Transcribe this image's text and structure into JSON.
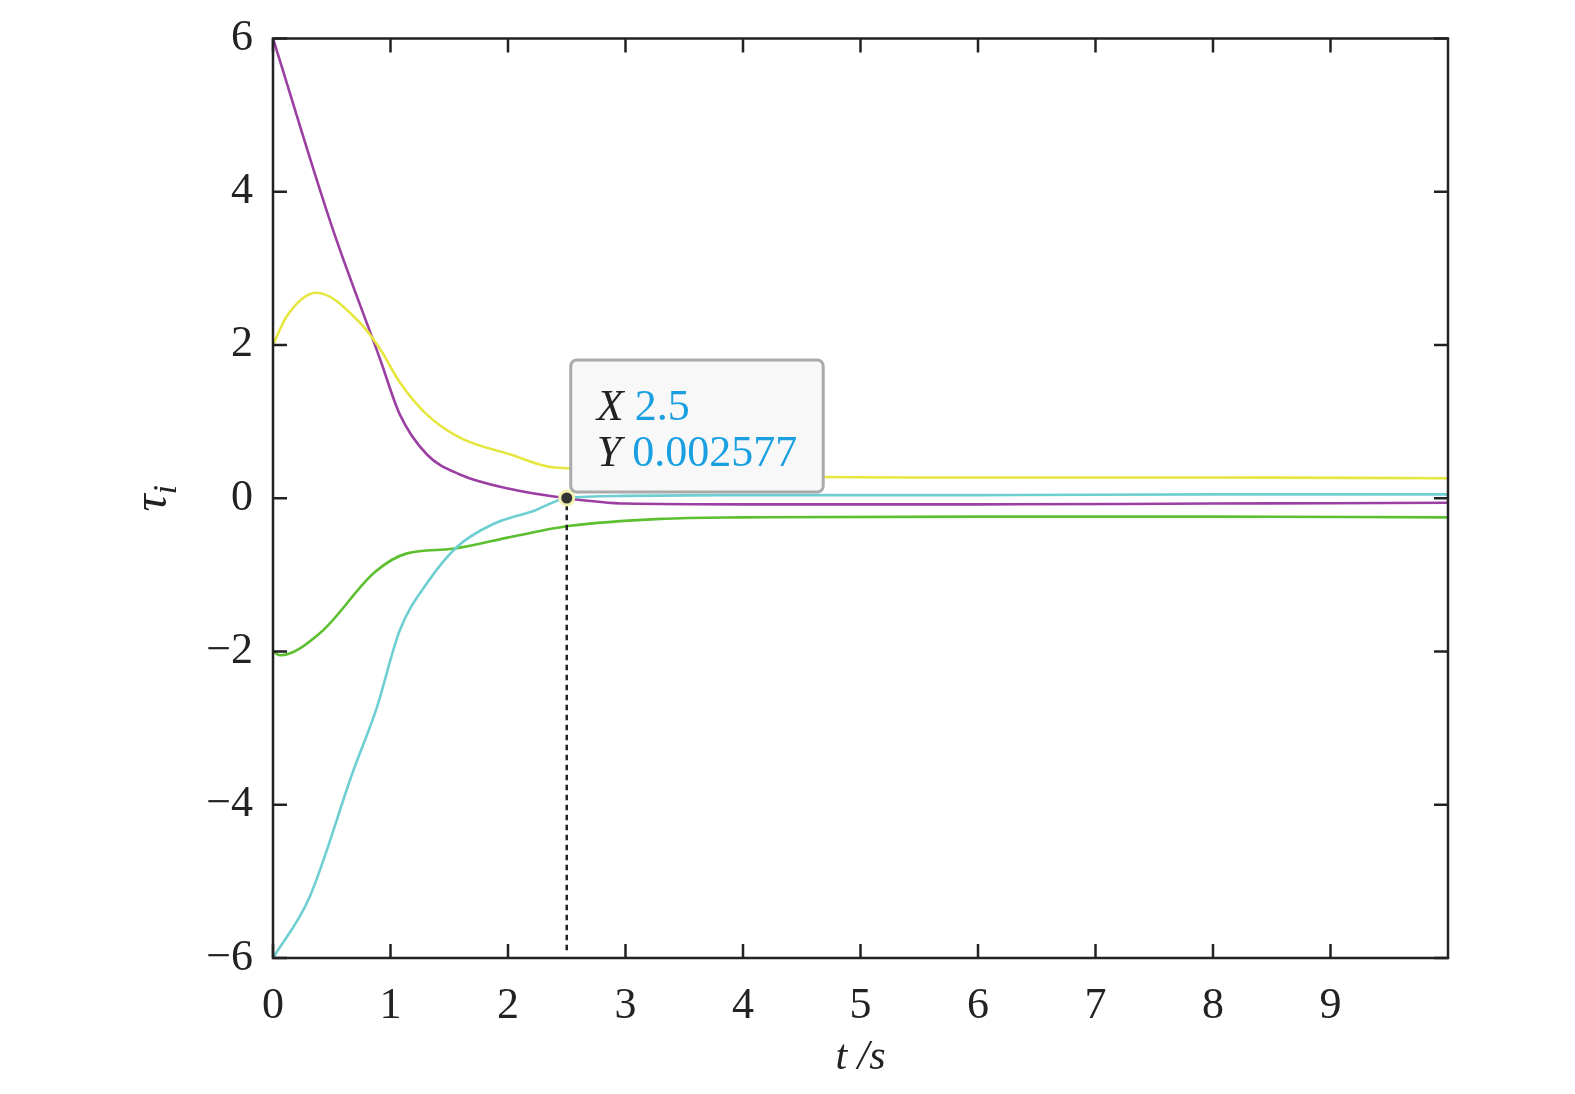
{
  "chart_data": {
    "type": "line",
    "xlabel": "t /s",
    "ylabel": "τ$_{i}$",
    "xlim": [
      0,
      10
    ],
    "xticks": [
      0,
      1,
      2,
      3,
      4,
      5,
      6,
      7,
      8,
      9
    ],
    "ylim": [
      -6,
      6
    ],
    "yticks": [
      -6,
      -4,
      -2,
      0,
      2,
      4,
      6
    ],
    "grid": false,
    "series": [
      {
        "color": "#e5e640",
        "x": [
          0,
          0.12,
          0.37,
          0.74,
          0.91,
          1.08,
          1.31,
          1.59,
          2.02,
          2.4,
          6,
          8,
          10
        ],
        "values": [
          2,
          2.38,
          2.68,
          2.29,
          1.95,
          1.51,
          1.09,
          0.79,
          0.57,
          0.4,
          0.27,
          0.27,
          0.26
        ]
      },
      {
        "color": "#6ecfd2",
        "x": [
          0,
          0.31,
          0.68,
          0.88,
          1.08,
          1.31,
          1.57,
          1.87,
          2.21,
          2.5,
          3,
          4,
          6,
          8,
          10
        ],
        "values": [
          -6,
          -5.21,
          -3.57,
          -2.75,
          -1.72,
          -1.11,
          -0.63,
          -0.34,
          -0.17,
          0,
          0.03,
          0.04,
          0.04,
          0.05,
          0.05
        ]
      },
      {
        "color": "#5cbf2f",
        "x": [
          0,
          0.06,
          0.4,
          0.87,
          1.14,
          1.53,
          2.04,
          2.53,
          3.3,
          4,
          6,
          8,
          10
        ],
        "values": [
          -2,
          -2.05,
          -1.76,
          -0.96,
          -0.72,
          -0.66,
          -0.5,
          -0.36,
          -0.27,
          -0.25,
          -0.24,
          -0.24,
          -0.25
        ]
      },
      {
        "color": "#9b3fa3",
        "x": [
          0,
          0.5,
          0.91,
          1.08,
          1.31,
          1.59,
          2.02,
          2.5,
          3,
          4,
          6,
          8,
          10
        ],
        "values": [
          6,
          3.55,
          1.82,
          1.09,
          0.57,
          0.31,
          0.12,
          0,
          -0.07,
          -0.08,
          -0.08,
          -0.07,
          -0.06
        ]
      }
    ],
    "annotations": [
      {
        "text": "X 2.5\nY 0.002577",
        "x": 2.5,
        "y": 0.002577
      }
    ]
  }
}
